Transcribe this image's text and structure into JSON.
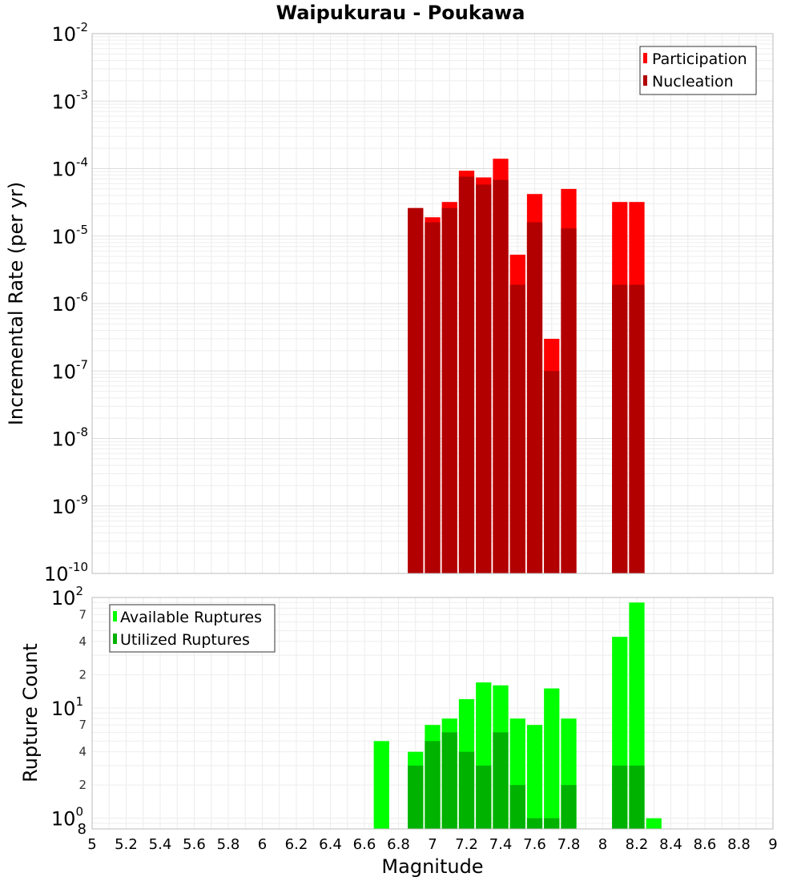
{
  "chart_data": [
    {
      "type": "bar",
      "title": "Waipukurau - Poukawa",
      "ylabel": "Incremental Rate (per yr)",
      "xlabel": "",
      "yscale": "log",
      "ylim": [
        1e-10,
        0.01
      ],
      "xlim": [
        5,
        9
      ],
      "grid": true,
      "legend_position": "top-right",
      "y_tick_labels": [
        {
          "base": "10",
          "exp": "-10",
          "value": 1e-10
        },
        {
          "base": "10",
          "exp": "-9",
          "value": 1e-09
        },
        {
          "base": "10",
          "exp": "-8",
          "value": 1e-08
        },
        {
          "base": "10",
          "exp": "-7",
          "value": 1e-07
        },
        {
          "base": "10",
          "exp": "-6",
          "value": 1e-06
        },
        {
          "base": "10",
          "exp": "-5",
          "value": 1e-05
        },
        {
          "base": "10",
          "exp": "-4",
          "value": 0.0001
        },
        {
          "base": "10",
          "exp": "-3",
          "value": 0.001
        },
        {
          "base": "10",
          "exp": "-2",
          "value": 0.01
        }
      ],
      "x": [
        6.9,
        7.0,
        7.1,
        7.2,
        7.3,
        7.4,
        7.5,
        7.6,
        7.7,
        7.8,
        8.1,
        8.2
      ],
      "series": [
        {
          "name": "Participation",
          "color": "#ff0000",
          "values": [
            2.6e-05,
            1.9e-05,
            3.2e-05,
            9.3e-05,
            7.4e-05,
            0.00014,
            5.3e-06,
            4.2e-05,
            3e-07,
            5e-05,
            3.2e-05,
            3.2e-05
          ]
        },
        {
          "name": "Nucleation",
          "color": "#b20000",
          "values": [
            2.6e-05,
            1.6e-05,
            2.6e-05,
            7.6e-05,
            5.8e-05,
            6.8e-05,
            1.9e-06,
            1.6e-05,
            1e-07,
            1.3e-05,
            1.9e-06,
            1.9e-06
          ]
        }
      ]
    },
    {
      "type": "bar",
      "title": "",
      "ylabel": "Rupture Count",
      "xlabel": "Magnitude",
      "yscale": "log",
      "ylim": [
        0.8,
        100
      ],
      "xlim": [
        5,
        9
      ],
      "grid": true,
      "legend_position": "top-left",
      "x_tick_labels": [
        "5",
        "5.2",
        "5.4",
        "5.6",
        "5.8",
        "6",
        "6.2",
        "6.4",
        "6.6",
        "6.8",
        "7",
        "7.2",
        "7.4",
        "7.6",
        "7.8",
        "8",
        "8.2",
        "8.4",
        "8.6",
        "8.8",
        "9"
      ],
      "y_major_tick_labels": [
        {
          "base": "10",
          "exp": "0",
          "value": 1
        },
        {
          "base": "10",
          "exp": "1",
          "value": 10
        },
        {
          "base": "10",
          "exp": "2",
          "value": 100
        }
      ],
      "y_minor_tick_labels": [
        {
          "label": "8",
          "value": 0.8
        },
        {
          "label": "2",
          "value": 2
        },
        {
          "label": "4",
          "value": 4
        },
        {
          "label": "7",
          "value": 7
        },
        {
          "label": "2",
          "value": 20
        },
        {
          "label": "4",
          "value": 40
        },
        {
          "label": "7",
          "value": 70
        }
      ],
      "x": [
        6.7,
        6.9,
        7.0,
        7.1,
        7.2,
        7.3,
        7.4,
        7.5,
        7.6,
        7.7,
        7.8,
        8.1,
        8.2,
        8.3
      ],
      "series": [
        {
          "name": "Available Ruptures",
          "color": "#00ff00",
          "values": [
            5,
            4,
            7,
            8,
            12,
            17,
            16,
            8,
            7,
            15,
            8,
            44,
            90,
            1
          ]
        },
        {
          "name": "Utilized Ruptures",
          "color": "#00b200",
          "values": [
            0,
            3,
            5,
            6,
            4,
            3,
            6,
            2,
            1,
            1,
            2,
            3,
            3,
            0
          ]
        }
      ]
    }
  ]
}
